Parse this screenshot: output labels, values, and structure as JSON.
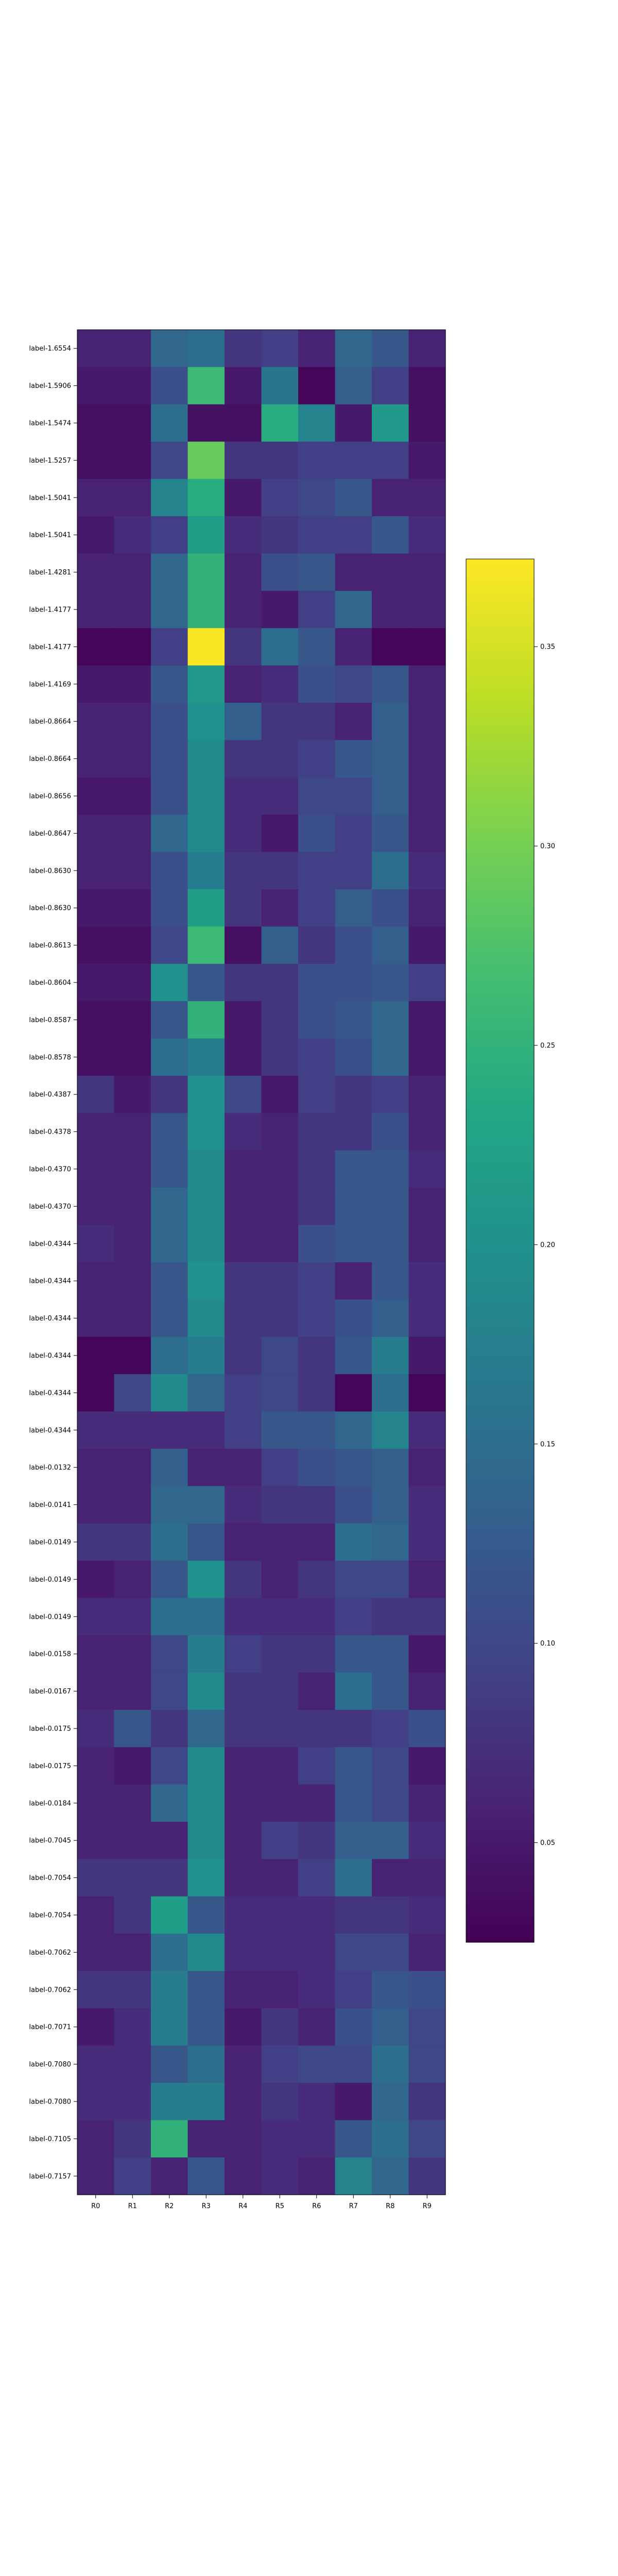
{
  "chart_data": {
    "type": "heatmap",
    "title": "",
    "xlabel": "",
    "ylabel": "",
    "colormap": "viridis",
    "colorbar": {
      "vmin": 0.025,
      "vmax": 0.372,
      "ticks": [
        0.05,
        0.1,
        0.15,
        0.2,
        0.25,
        0.3,
        0.35
      ],
      "tick_labels": [
        "0.05",
        "0.10",
        "0.15",
        "0.20",
        "0.25",
        "0.30",
        "0.35"
      ]
    },
    "columns": [
      "R0",
      "R1",
      "R2",
      "R3",
      "R4",
      "R5",
      "R6",
      "R7",
      "R8",
      "R9"
    ],
    "rows": [
      "label-1.6554",
      "label-1.5906",
      "label-1.5474",
      "label-1.5257",
      "label-1.5041",
      "label-1.5041",
      "label-1.4281",
      "label-1.4177",
      "label-1.4177",
      "label-1.4169",
      "label-0.8664",
      "label-0.8664",
      "label-0.8656",
      "label-0.8647",
      "label-0.8630",
      "label-0.8630",
      "label-0.8613",
      "label-0.8604",
      "label-0.8587",
      "label-0.8578",
      "label-0.4387",
      "label-0.4378",
      "label-0.4370",
      "label-0.4370",
      "label-0.4344",
      "label-0.4344",
      "label-0.4344",
      "label-0.4344",
      "label-0.4344",
      "label-0.4344",
      "label-0.0132",
      "label-0.0141",
      "label-0.0149",
      "label-0.0149",
      "label-0.0149",
      "label-0.0158",
      "label-0.0167",
      "label-0.0175",
      "label-0.0175",
      "label-0.0184",
      "label-0.7045",
      "label-0.7054",
      "label-0.7054",
      "label-0.7062",
      "label-0.7062",
      "label-0.7071",
      "label-0.7080",
      "label-0.7080",
      "label-0.7105",
      "label-0.7157"
    ],
    "values": [
      [
        0.06,
        0.06,
        0.14,
        0.15,
        0.08,
        0.09,
        0.06,
        0.14,
        0.12,
        0.06
      ],
      [
        0.05,
        0.05,
        0.11,
        0.26,
        0.05,
        0.16,
        0.03,
        0.13,
        0.09,
        0.04
      ],
      [
        0.04,
        0.04,
        0.15,
        0.04,
        0.04,
        0.24,
        0.18,
        0.05,
        0.21,
        0.04
      ],
      [
        0.04,
        0.04,
        0.1,
        0.29,
        0.08,
        0.08,
        0.09,
        0.09,
        0.09,
        0.05
      ],
      [
        0.06,
        0.06,
        0.18,
        0.24,
        0.05,
        0.09,
        0.1,
        0.12,
        0.06,
        0.06
      ],
      [
        0.05,
        0.07,
        0.09,
        0.22,
        0.07,
        0.08,
        0.09,
        0.09,
        0.12,
        0.07
      ],
      [
        0.06,
        0.06,
        0.14,
        0.25,
        0.06,
        0.11,
        0.12,
        0.06,
        0.06,
        0.06
      ],
      [
        0.06,
        0.06,
        0.14,
        0.25,
        0.06,
        0.05,
        0.09,
        0.14,
        0.06,
        0.06
      ],
      [
        0.03,
        0.03,
        0.09,
        0.37,
        0.08,
        0.15,
        0.12,
        0.06,
        0.03,
        0.03
      ],
      [
        0.05,
        0.05,
        0.12,
        0.21,
        0.06,
        0.07,
        0.11,
        0.1,
        0.12,
        0.06
      ],
      [
        0.06,
        0.06,
        0.11,
        0.2,
        0.13,
        0.08,
        0.08,
        0.06,
        0.13,
        0.06
      ],
      [
        0.06,
        0.06,
        0.11,
        0.19,
        0.08,
        0.08,
        0.09,
        0.12,
        0.13,
        0.06
      ],
      [
        0.05,
        0.05,
        0.11,
        0.19,
        0.07,
        0.07,
        0.1,
        0.1,
        0.13,
        0.06
      ],
      [
        0.06,
        0.06,
        0.14,
        0.19,
        0.07,
        0.05,
        0.11,
        0.09,
        0.12,
        0.06
      ],
      [
        0.06,
        0.06,
        0.11,
        0.17,
        0.08,
        0.08,
        0.09,
        0.09,
        0.15,
        0.07
      ],
      [
        0.05,
        0.05,
        0.11,
        0.22,
        0.08,
        0.06,
        0.09,
        0.13,
        0.11,
        0.06
      ],
      [
        0.04,
        0.04,
        0.1,
        0.26,
        0.04,
        0.13,
        0.08,
        0.11,
        0.13,
        0.05
      ],
      [
        0.05,
        0.05,
        0.2,
        0.12,
        0.08,
        0.08,
        0.11,
        0.11,
        0.12,
        0.09
      ],
      [
        0.04,
        0.04,
        0.12,
        0.25,
        0.05,
        0.08,
        0.11,
        0.12,
        0.14,
        0.05
      ],
      [
        0.04,
        0.04,
        0.15,
        0.17,
        0.05,
        0.08,
        0.09,
        0.11,
        0.14,
        0.05
      ],
      [
        0.08,
        0.05,
        0.08,
        0.2,
        0.1,
        0.05,
        0.09,
        0.08,
        0.09,
        0.06
      ],
      [
        0.06,
        0.06,
        0.12,
        0.2,
        0.07,
        0.06,
        0.08,
        0.08,
        0.11,
        0.06
      ],
      [
        0.06,
        0.06,
        0.12,
        0.19,
        0.06,
        0.06,
        0.08,
        0.12,
        0.12,
        0.07
      ],
      [
        0.06,
        0.06,
        0.14,
        0.19,
        0.06,
        0.06,
        0.08,
        0.12,
        0.12,
        0.06
      ],
      [
        0.07,
        0.06,
        0.14,
        0.19,
        0.06,
        0.06,
        0.11,
        0.12,
        0.12,
        0.06
      ],
      [
        0.06,
        0.06,
        0.12,
        0.2,
        0.08,
        0.08,
        0.09,
        0.06,
        0.12,
        0.07
      ],
      [
        0.06,
        0.06,
        0.12,
        0.19,
        0.08,
        0.08,
        0.09,
        0.11,
        0.13,
        0.07
      ],
      [
        0.03,
        0.03,
        0.15,
        0.17,
        0.08,
        0.1,
        0.08,
        0.12,
        0.17,
        0.05
      ],
      [
        0.03,
        0.1,
        0.19,
        0.14,
        0.09,
        0.1,
        0.08,
        0.03,
        0.15,
        0.03
      ],
      [
        0.07,
        0.07,
        0.07,
        0.07,
        0.09,
        0.12,
        0.12,
        0.14,
        0.18,
        0.07
      ],
      [
        0.06,
        0.06,
        0.13,
        0.06,
        0.06,
        0.09,
        0.11,
        0.12,
        0.13,
        0.06
      ],
      [
        0.06,
        0.06,
        0.14,
        0.14,
        0.07,
        0.08,
        0.08,
        0.11,
        0.13,
        0.07
      ],
      [
        0.08,
        0.08,
        0.15,
        0.12,
        0.06,
        0.06,
        0.06,
        0.15,
        0.14,
        0.07
      ],
      [
        0.05,
        0.06,
        0.12,
        0.2,
        0.08,
        0.06,
        0.08,
        0.1,
        0.1,
        0.06
      ],
      [
        0.07,
        0.07,
        0.15,
        0.15,
        0.07,
        0.07,
        0.07,
        0.09,
        0.08,
        0.08
      ],
      [
        0.06,
        0.06,
        0.1,
        0.17,
        0.09,
        0.08,
        0.08,
        0.12,
        0.12,
        0.05
      ],
      [
        0.06,
        0.06,
        0.1,
        0.19,
        0.08,
        0.08,
        0.06,
        0.15,
        0.12,
        0.06
      ],
      [
        0.07,
        0.12,
        0.08,
        0.14,
        0.08,
        0.08,
        0.08,
        0.08,
        0.09,
        0.11
      ],
      [
        0.06,
        0.05,
        0.1,
        0.19,
        0.06,
        0.06,
        0.09,
        0.12,
        0.1,
        0.05
      ],
      [
        0.06,
        0.06,
        0.14,
        0.19,
        0.06,
        0.06,
        0.06,
        0.12,
        0.1,
        0.06
      ],
      [
        0.06,
        0.06,
        0.06,
        0.19,
        0.06,
        0.09,
        0.08,
        0.13,
        0.13,
        0.07
      ],
      [
        0.08,
        0.08,
        0.08,
        0.2,
        0.06,
        0.06,
        0.09,
        0.15,
        0.06,
        0.06
      ],
      [
        0.06,
        0.08,
        0.22,
        0.12,
        0.07,
        0.07,
        0.07,
        0.08,
        0.08,
        0.07
      ],
      [
        0.06,
        0.06,
        0.15,
        0.19,
        0.07,
        0.07,
        0.07,
        0.1,
        0.1,
        0.06
      ],
      [
        0.08,
        0.08,
        0.17,
        0.12,
        0.06,
        0.06,
        0.07,
        0.09,
        0.12,
        0.11
      ],
      [
        0.05,
        0.07,
        0.17,
        0.12,
        0.05,
        0.08,
        0.06,
        0.11,
        0.13,
        0.1
      ],
      [
        0.07,
        0.07,
        0.12,
        0.15,
        0.06,
        0.09,
        0.1,
        0.1,
        0.15,
        0.1
      ],
      [
        0.07,
        0.07,
        0.17,
        0.17,
        0.06,
        0.08,
        0.07,
        0.05,
        0.14,
        0.08
      ],
      [
        0.06,
        0.08,
        0.25,
        0.06,
        0.06,
        0.07,
        0.07,
        0.12,
        0.15,
        0.1
      ],
      [
        0.06,
        0.09,
        0.06,
        0.12,
        0.06,
        0.07,
        0.06,
        0.18,
        0.14,
        0.08
      ]
    ]
  }
}
